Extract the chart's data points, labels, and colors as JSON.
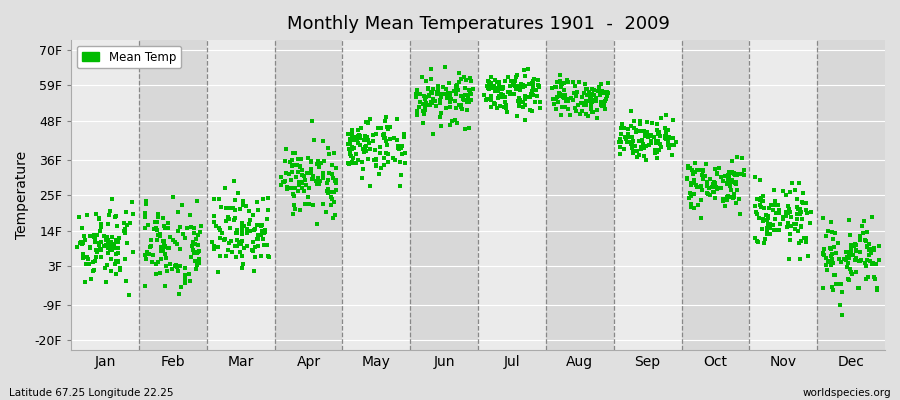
{
  "title": "Monthly Mean Temperatures 1901  -  2009",
  "ylabel": "Temperature",
  "xlabel_months": [
    "Jan",
    "Feb",
    "Mar",
    "Apr",
    "May",
    "Jun",
    "Jul",
    "Aug",
    "Sep",
    "Oct",
    "Nov",
    "Dec"
  ],
  "subtitle_left": "Latitude 67.25 Longitude 22.25",
  "subtitle_right": "worldspecies.org",
  "legend_label": "Mean Temp",
  "yticks": [
    -20,
    -9,
    3,
    14,
    25,
    36,
    48,
    59,
    70
  ],
  "ytick_labels": [
    "-20F",
    "-9F",
    "3F",
    "14F",
    "25F",
    "36F",
    "48F",
    "59F",
    "70F"
  ],
  "ylim": [
    -23,
    73
  ],
  "dot_color": "#00bb00",
  "bg_color": "#e0e0e0",
  "band_light": "#ebebeb",
  "band_dark": "#d8d8d8",
  "num_years": 109,
  "monthly_means": [
    10,
    10,
    14,
    30,
    40,
    55,
    57,
    55,
    43,
    28,
    18,
    5
  ],
  "monthly_stds": [
    6,
    7,
    6,
    5,
    5,
    4,
    3,
    3,
    3,
    4,
    5,
    6
  ],
  "figsize": [
    9.0,
    4.0
  ],
  "dpi": 100
}
